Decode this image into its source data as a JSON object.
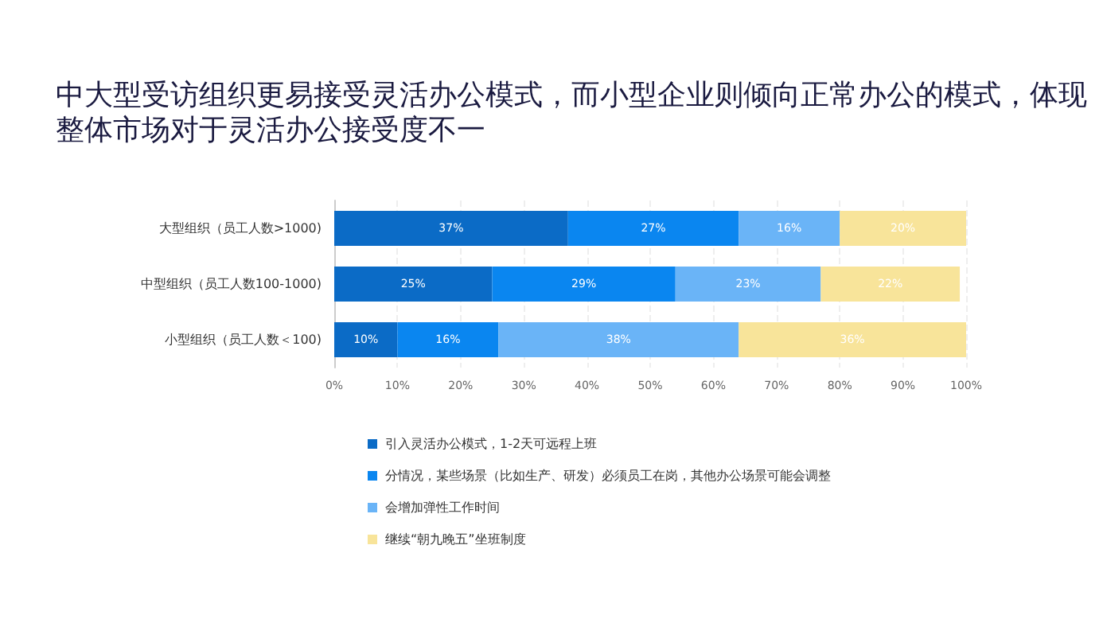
{
  "chart_data": {
    "type": "bar",
    "orientation": "horizontal",
    "stacked": true,
    "title": "中大型受访组织更易接受灵活办公模式，而小型企业则倾向正常办公的模式，体现整体市场对于灵活办公接受度不一",
    "categories": [
      "大型组织（员工人数>1000)",
      "中型组织（员工人数100-1000)",
      "小型组织（员工人数＜100)"
    ],
    "series": [
      {
        "name": "引入灵活办公模式，1-2天可远程上班",
        "color": "#0b6bc6",
        "values": [
          37,
          25,
          10
        ],
        "value_labels": [
          "37%",
          "25%",
          "10%"
        ]
      },
      {
        "name": "分情况，某些场景（比如生产、研发）必须员工在岗，其他办公场景可能会调整",
        "color": "#0a86f0",
        "values": [
          27,
          29,
          16
        ],
        "value_labels": [
          "27%",
          "29%",
          "16%"
        ]
      },
      {
        "name": "会增加弹性工作时间",
        "color": "#6ab4f7",
        "values": [
          16,
          23,
          38
        ],
        "value_labels": [
          "16%",
          "23%",
          "38%"
        ]
      },
      {
        "name": "继续“朝九晚五”坐班制度",
        "color": "#f8e49a",
        "values": [
          20,
          22,
          36
        ],
        "value_labels": [
          "20%",
          "22%",
          "36%"
        ]
      }
    ],
    "xlim": [
      0,
      100
    ],
    "xticks": [
      {
        "value": 0,
        "label": "0%"
      },
      {
        "value": 10,
        "label": "10%"
      },
      {
        "value": 20,
        "label": "20%"
      },
      {
        "value": 30,
        "label": "30%"
      },
      {
        "value": 40,
        "label": "40%"
      },
      {
        "value": 50,
        "label": "50%"
      },
      {
        "value": 60,
        "label": "60%"
      },
      {
        "value": 70,
        "label": "70%"
      },
      {
        "value": 80,
        "label": "80%"
      },
      {
        "value": 90,
        "label": "90%"
      },
      {
        "value": 100,
        "label": "100%"
      }
    ],
    "grid": "x",
    "legend": "bottom"
  }
}
